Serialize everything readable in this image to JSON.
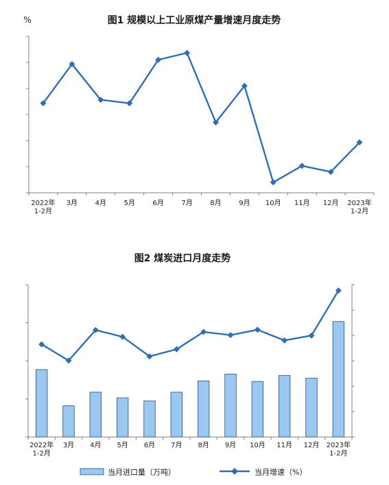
{
  "colors": {
    "line": "#2f6db4",
    "bar_fill": "#9cc8f0",
    "bar_stroke": "#1f4e8c",
    "axis": "#808080",
    "text": "#1a1a1a"
  },
  "chart_data": [
    {
      "type": "line",
      "title": "图1  规模以上工业原煤产量增速月度走势",
      "ylabel": "%",
      "categories": [
        "2022年\n1-2月",
        "3月",
        "4月",
        "5月",
        "6月",
        "7月",
        "8月",
        "9月",
        "10月",
        "11月",
        "12月",
        "2023年\n1-2月"
      ],
      "series": [
        {
          "values": [
            10.3,
            14.8,
            10.7,
            10.3,
            15.3,
            16.1,
            8.1,
            12.3,
            1.2,
            3.1,
            2.4,
            5.8
          ]
        }
      ],
      "data_labels": [
        "10.3",
        "14.8",
        "10.7",
        "10.3",
        "15.3",
        "16.1",
        "8.1",
        "12.3",
        "1.2",
        "3.1",
        "2.4",
        "5.8"
      ],
      "ylim": [
        0,
        18
      ],
      "yticks": [
        "0",
        "3",
        "6",
        "9",
        "12",
        "15",
        "18"
      ],
      "grid": false,
      "marker": "diamond"
    },
    {
      "type": "bar",
      "title": "图2  煤炭进口月度走势",
      "categories": [
        "2022年\n1-2月",
        "3月",
        "4月",
        "5月",
        "6月",
        "7月",
        "8月",
        "9月",
        "10月",
        "11月",
        "12月",
        "2023年\n1-2月"
      ],
      "series": [
        {
          "name": "当月进口量（万吨）",
          "type": "bar",
          "axis": "left",
          "values": [
            3539,
            1642,
            2355,
            2055,
            1898,
            2352,
            2946,
            3305,
            2918,
            3231,
            3091,
            6064
          ],
          "labels": [
            "3539",
            "1642",
            "2355",
            "2055",
            "1898",
            "2352",
            "2946",
            "3305",
            "2918",
            "3231",
            "3091",
            "6064"
          ]
        },
        {
          "name": "当月增速（%）",
          "type": "line",
          "axis": "right",
          "values": [
            -14.0,
            -39.6,
            8.5,
            -2.1,
            -33.0,
            -21.8,
            5.5,
            0.6,
            9.0,
            -7.8,
            -0.1,
            70.8
          ],
          "labels": [
            "-14.0",
            "-39.6",
            "8.5",
            "-2.1",
            "-33.0",
            "-21.8",
            "5.5",
            "0.6",
            "9.0",
            "-7.8",
            "-0.1",
            "70.8"
          ]
        }
      ],
      "ylim_left": [
        0,
        8000
      ],
      "yticks_left": [
        "0",
        "2000",
        "4000",
        "6000",
        "8000"
      ],
      "ylim_right": [
        -160,
        80
      ],
      "yticks_right": [
        "-160",
        "-120",
        "-80",
        "-40",
        "0",
        "40",
        "80"
      ],
      "legend": [
        "当月进口量（万吨）",
        "当月增速（%）"
      ],
      "legend_position": "bottom",
      "grid": false
    }
  ]
}
